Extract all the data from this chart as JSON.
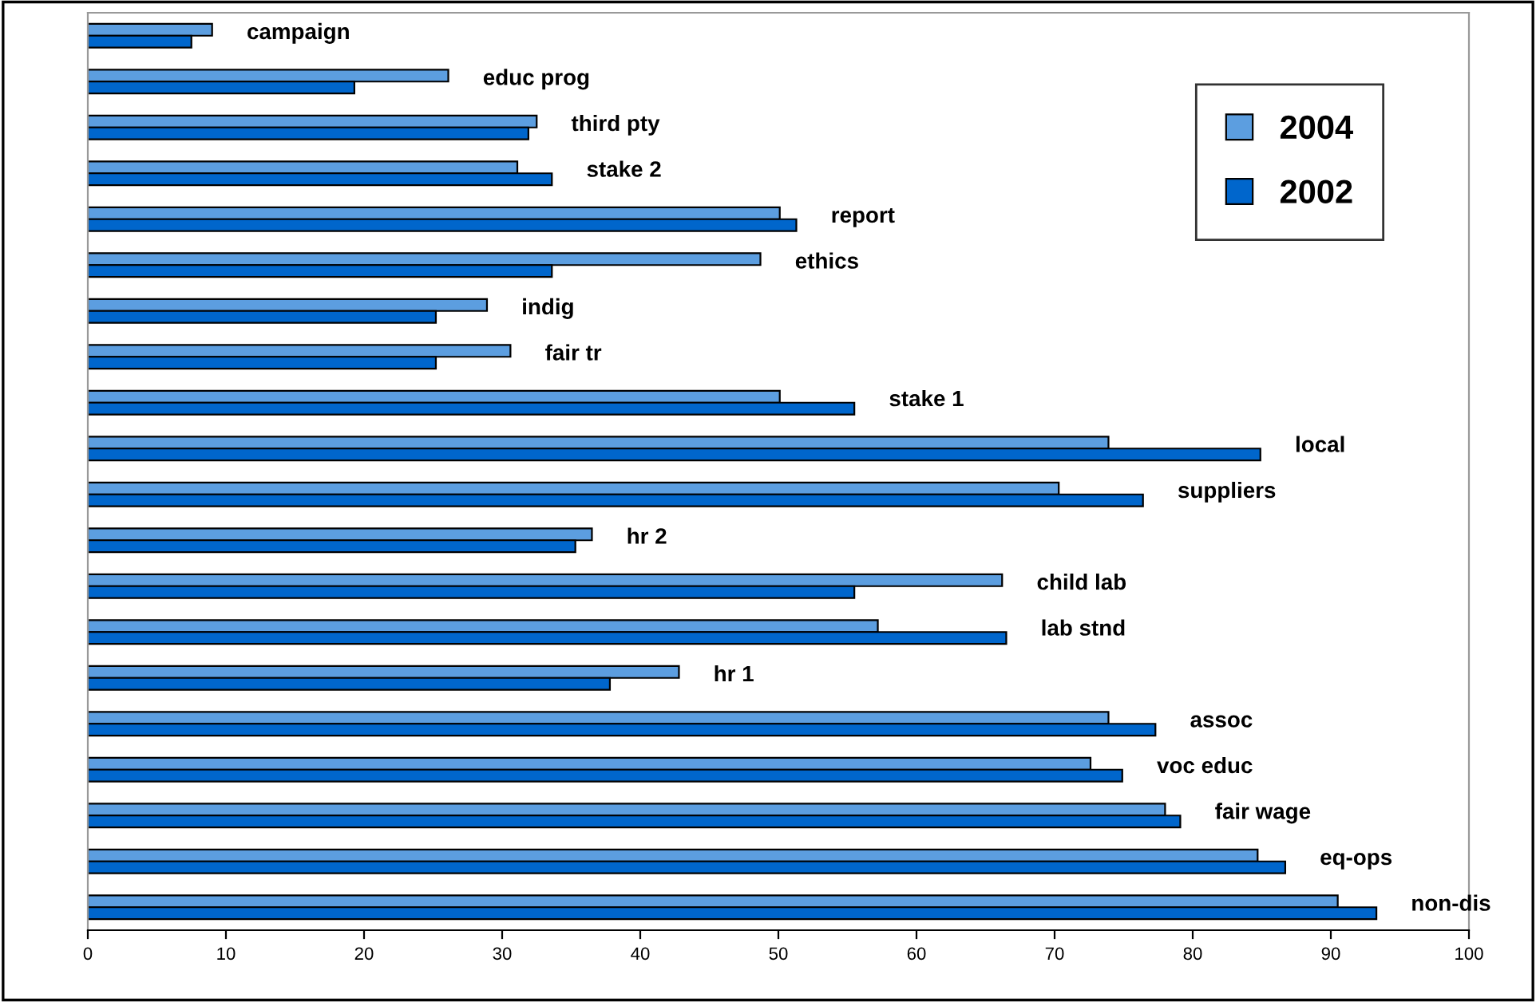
{
  "chart_data": {
    "type": "bar",
    "orientation": "horizontal",
    "categories": [
      "campaign",
      "educ prog",
      "third pty",
      "stake 2",
      "report",
      "ethics",
      "indig",
      "fair tr",
      "stake 1",
      "local",
      "suppliers",
      "hr 2",
      "child lab",
      "lab stnd",
      "hr 1",
      "assoc",
      "voc educ",
      "fair wage",
      "eq-ops",
      "non-dis"
    ],
    "series": [
      {
        "name": "2004",
        "color": "#5c9ee0",
        "values": [
          9.0,
          26.1,
          32.5,
          31.1,
          50.1,
          48.7,
          28.9,
          30.6,
          50.1,
          73.9,
          70.3,
          36.5,
          66.2,
          57.2,
          42.8,
          73.9,
          72.6,
          78.0,
          84.7,
          90.5
        ]
      },
      {
        "name": "2002",
        "color": "#0066cc",
        "values": [
          7.5,
          19.3,
          31.9,
          33.6,
          51.3,
          33.6,
          25.2,
          25.2,
          55.5,
          84.9,
          76.4,
          35.3,
          55.5,
          66.5,
          37.8,
          77.3,
          74.9,
          79.1,
          86.7,
          93.3
        ]
      }
    ],
    "xlim": [
      0,
      100
    ],
    "xticks": [
      0,
      10,
      20,
      30,
      40,
      50,
      60,
      70,
      80,
      90,
      100
    ],
    "legend": "top right",
    "grid": false
  }
}
